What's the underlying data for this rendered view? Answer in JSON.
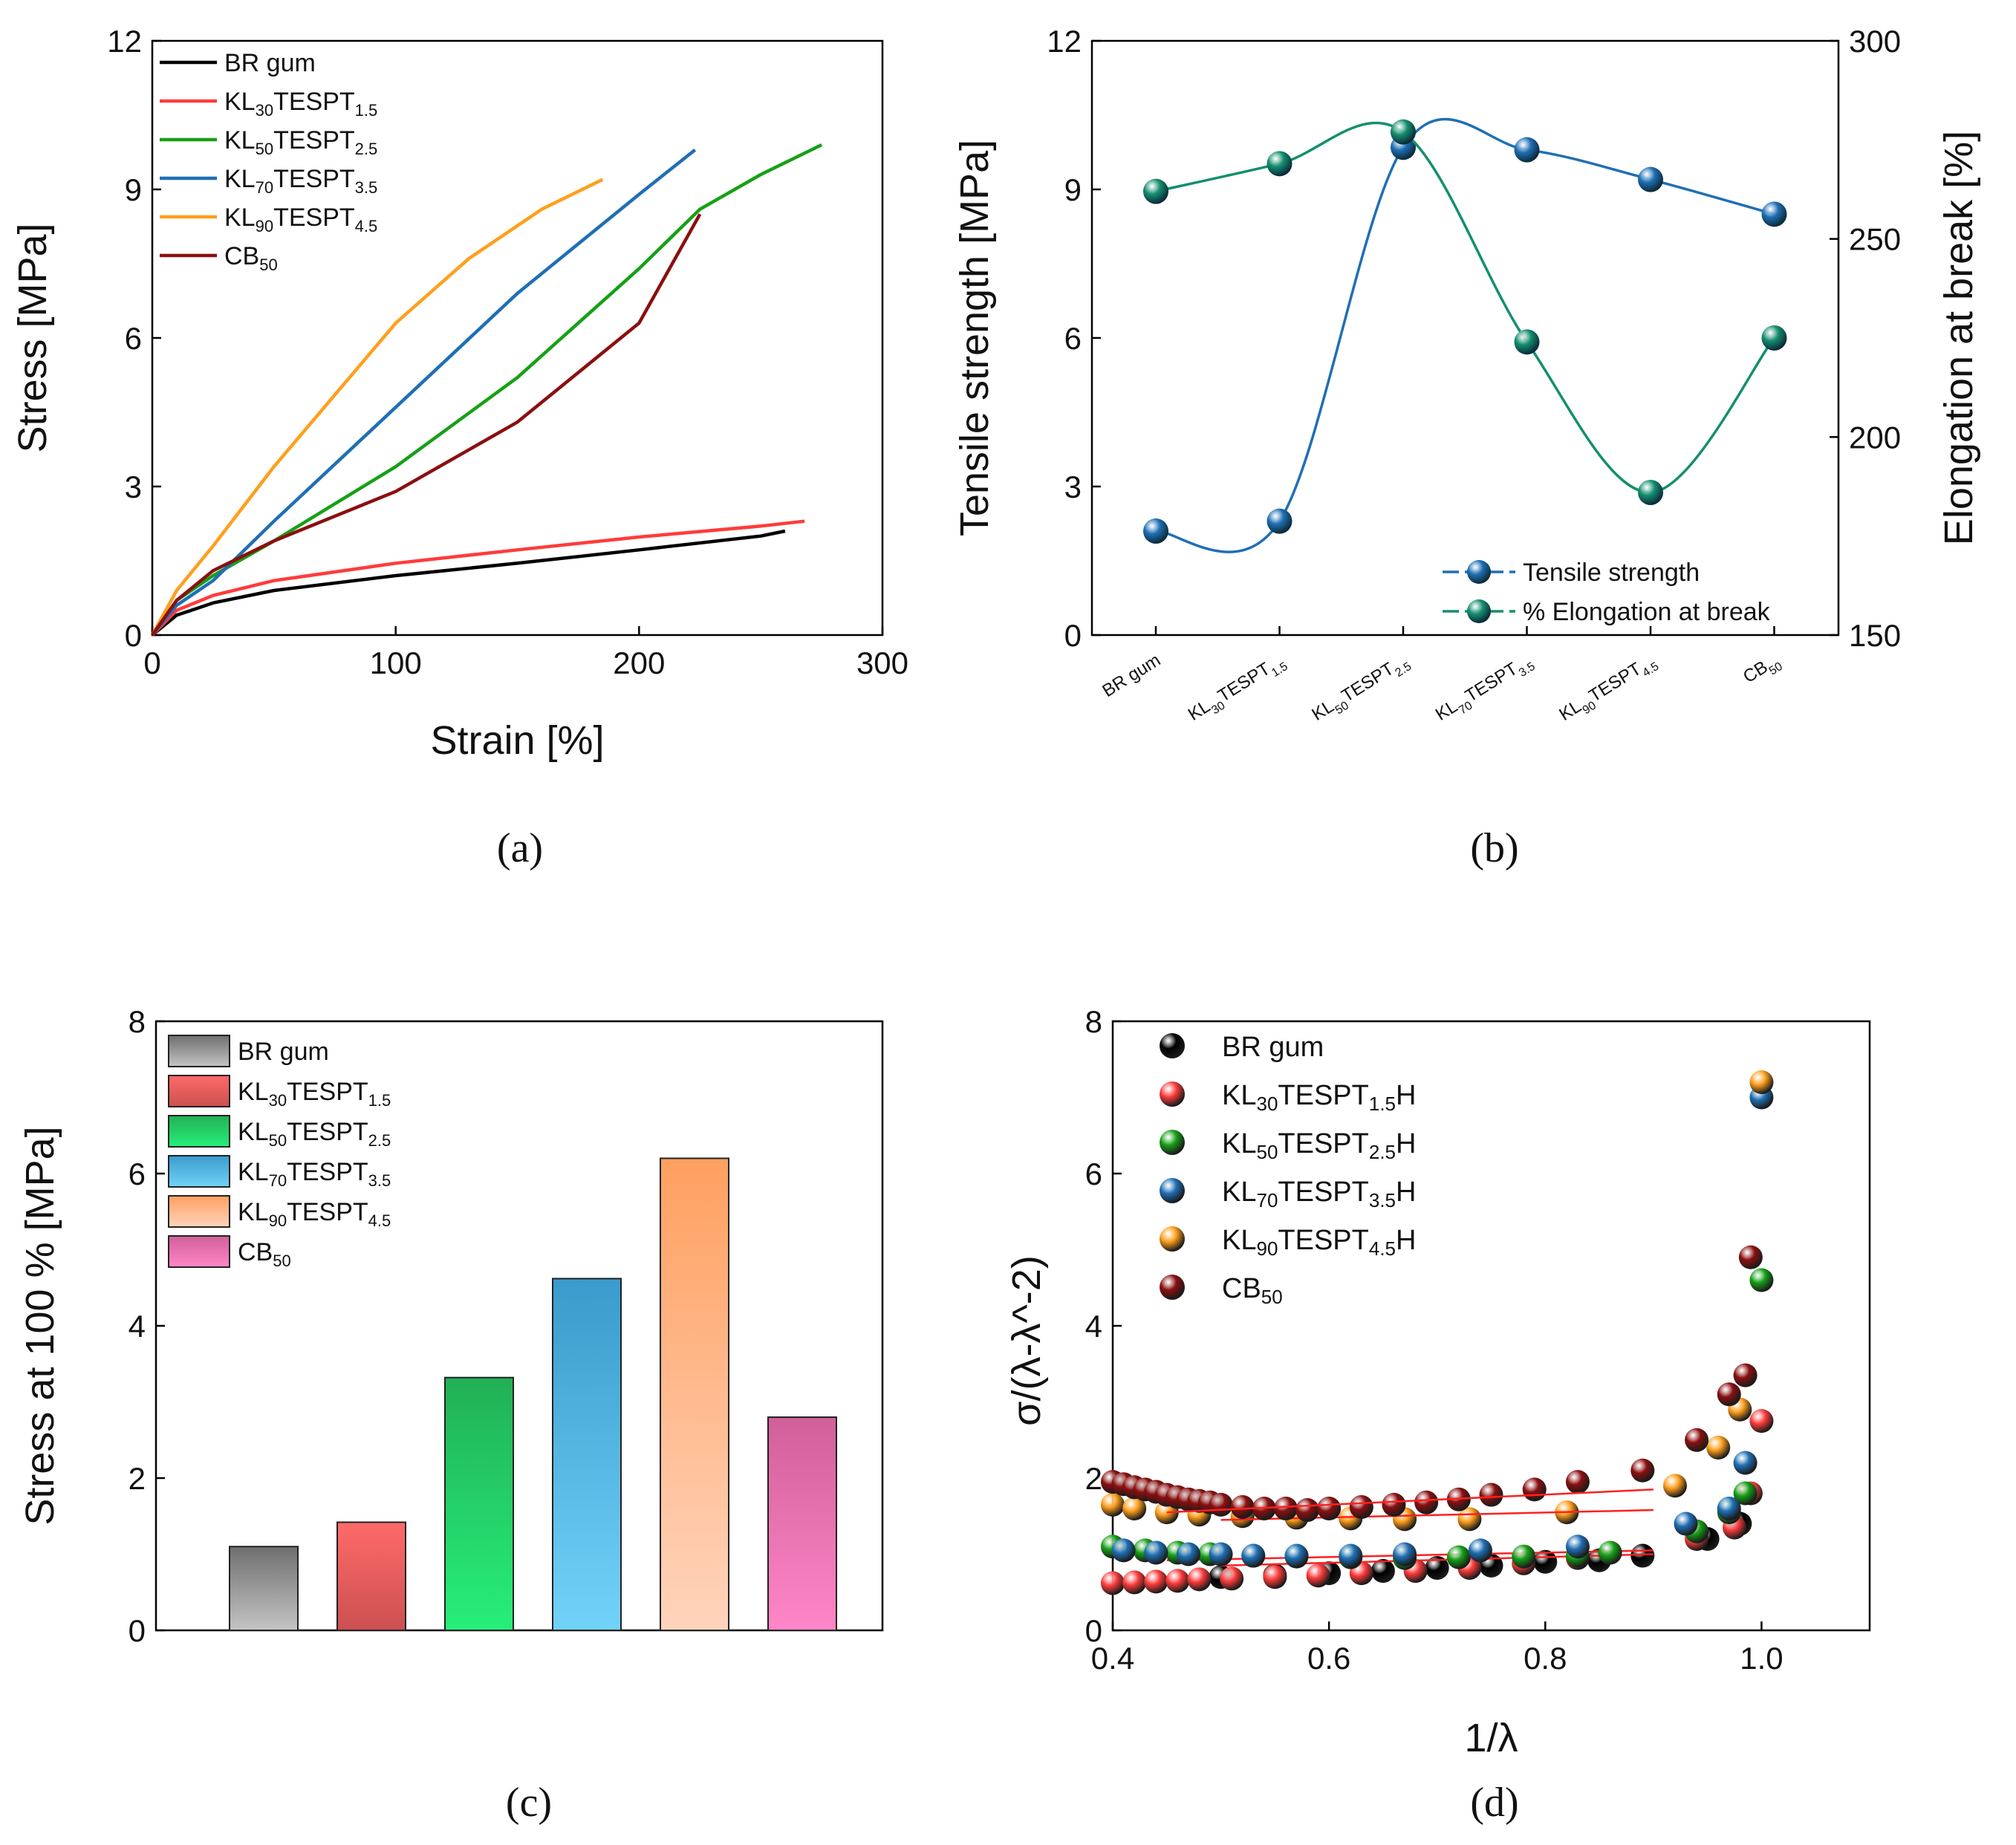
{
  "chart_data": [
    {
      "id": "a",
      "type": "line",
      "panel_label": "(a)",
      "xlabel": "Strain [%]",
      "ylabel": "Stress [MPa]",
      "xlim": [
        0,
        300
      ],
      "ylim": [
        0,
        12
      ],
      "xticks": [
        0,
        100,
        200,
        300
      ],
      "yticks": [
        0,
        3,
        6,
        9,
        12
      ],
      "legend_position": "top-left",
      "series": [
        {
          "name": "BR gum",
          "base": "BR gum",
          "sub": "",
          "suffix": "",
          "color": "#000000",
          "x": [
            0,
            10,
            25,
            50,
            100,
            150,
            200,
            250,
            260
          ],
          "y": [
            0,
            0.4,
            0.65,
            0.9,
            1.2,
            1.45,
            1.72,
            2.0,
            2.1
          ]
        },
        {
          "name": "KL30TESPT1.5",
          "base": "KL",
          "sub": "30",
          "mid": "TESPT",
          "sub2": "1.5",
          "color": "#ff3b3b",
          "x": [
            0,
            10,
            25,
            50,
            100,
            150,
            200,
            250,
            268
          ],
          "y": [
            0,
            0.5,
            0.8,
            1.1,
            1.45,
            1.72,
            1.98,
            2.2,
            2.3
          ]
        },
        {
          "name": "KL50TESPT2.5",
          "base": "KL",
          "sub": "50",
          "mid": "TESPT",
          "sub2": "2.5",
          "color": "#16a016",
          "x": [
            0,
            10,
            25,
            50,
            100,
            150,
            200,
            225,
            250,
            275
          ],
          "y": [
            0,
            0.7,
            1.2,
            1.9,
            3.4,
            5.2,
            7.4,
            8.6,
            9.3,
            9.9
          ]
        },
        {
          "name": "KL70TESPT3.5",
          "base": "KL",
          "sub": "70",
          "mid": "TESPT",
          "sub2": "3.5",
          "color": "#1f6fb5",
          "x": [
            0,
            10,
            25,
            50,
            100,
            150,
            200,
            223
          ],
          "y": [
            0,
            0.6,
            1.1,
            2.3,
            4.6,
            6.9,
            8.9,
            9.8
          ]
        },
        {
          "name": "KL90TESPT4.5",
          "base": "KL",
          "sub": "90",
          "mid": "TESPT",
          "sub2": "4.5",
          "color": "#ff9f1c",
          "x": [
            0,
            10,
            25,
            50,
            100,
            130,
            160,
            185
          ],
          "y": [
            0,
            0.9,
            1.8,
            3.4,
            6.3,
            7.6,
            8.6,
            9.2
          ]
        },
        {
          "name": "CB50",
          "base": "CB",
          "sub": "50",
          "mid": "",
          "sub2": "",
          "color": "#8b0f0f",
          "x": [
            0,
            10,
            25,
            50,
            100,
            150,
            200,
            225
          ],
          "y": [
            0,
            0.7,
            1.3,
            1.9,
            2.9,
            4.3,
            6.3,
            8.5
          ]
        }
      ]
    },
    {
      "id": "b",
      "type": "scatter",
      "panel_label": "(b)",
      "ylabel": "Tensile strength [MPa]",
      "y2label": "Elongation at break [%]",
      "ylim": [
        0,
        12
      ],
      "y2lim": [
        150,
        300
      ],
      "yticks": [
        0,
        3,
        6,
        9,
        12
      ],
      "y2ticks": [
        150,
        200,
        250,
        300
      ],
      "legend_position": "bottom-right",
      "categories": [
        {
          "base": "BR gum",
          "sub": "",
          "mid": "",
          "sub2": ""
        },
        {
          "base": "KL",
          "sub": "30",
          "mid": "TESPT",
          "sub2": "1.5"
        },
        {
          "base": "KL",
          "sub": "50",
          "mid": "TESPT",
          "sub2": "2.5"
        },
        {
          "base": "KL",
          "sub": "70",
          "mid": "TESPT",
          "sub2": "3.5"
        },
        {
          "base": "KL",
          "sub": "90",
          "mid": "TESPT",
          "sub2": "4.5"
        },
        {
          "base": "CB",
          "sub": "50",
          "mid": "",
          "sub2": ""
        }
      ],
      "series": [
        {
          "name": "Tensile strength",
          "axis": "left",
          "color": "#1f6fb5",
          "values": [
            2.1,
            2.3,
            9.85,
            9.8,
            9.2,
            8.5
          ]
        },
        {
          "name": "% Elongation at break",
          "axis": "right",
          "color": "#148f6e",
          "values": [
            262,
            269,
            277,
            224,
            186,
            225
          ]
        }
      ]
    },
    {
      "id": "c",
      "type": "bar",
      "panel_label": "(c)",
      "ylabel": "Stress at 100 % [MPa]",
      "ylim": [
        0,
        8
      ],
      "yticks": [
        0,
        2,
        4,
        6,
        8
      ],
      "legend_position": "top-left",
      "series": [
        {
          "name": "BR gum",
          "base": "BR gum",
          "sub": "",
          "mid": "",
          "sub2": "",
          "value": 1.1,
          "c1": "#6f6f6f",
          "c2": "#c4c4c4"
        },
        {
          "name": "KL30TESPT1.5",
          "base": " KL",
          "sub": "30",
          "mid": "TESPT",
          "sub2": "1.5",
          "value": 1.42,
          "c1": "#ff6a6a",
          "c2": "#cc5050"
        },
        {
          "name": "KL50TESPT2.5",
          "base": "KL",
          "sub": "50",
          "mid": "TESPT",
          "sub2": "2.5",
          "value": 3.32,
          "c1": "#22b055",
          "c2": "#26ef7a"
        },
        {
          "name": "KL70TESPT3.5",
          "base": "KL",
          "sub": "70",
          "mid": "TESPT",
          "sub2": "3.5",
          "value": 4.62,
          "c1": "#3a9bcc",
          "c2": "#72d2f8"
        },
        {
          "name": "KL90TESPT4.5",
          "base": "KL",
          "sub": "90",
          "mid": "TESPT",
          "sub2": "4.5",
          "value": 6.2,
          "c1": "#ffa060",
          "c2": "#ffd4bc"
        },
        {
          "name": "CB50",
          "base": "CB",
          "sub": "50",
          "mid": "",
          "sub2": "",
          "value": 2.8,
          "c1": "#d0609a",
          "c2": "#ff86c8"
        }
      ]
    },
    {
      "id": "d",
      "type": "scatter",
      "panel_label": "(d)",
      "xlabel": "1/λ",
      "ylabel": "σ/(λ-λ^-2)",
      "xlim": [
        0.4,
        1.1
      ],
      "ylim": [
        0,
        8
      ],
      "xticks": [
        "0.4",
        "0.6",
        "0.8",
        "1.0"
      ],
      "yticks": [
        0,
        2,
        4,
        6,
        8
      ],
      "legend_position": "top-left",
      "fit_line_color": "#ff2020",
      "series": [
        {
          "name": "BR gum",
          "base": "BR gum",
          "sub": "",
          "mid": "",
          "sub2": "",
          "suffix": "",
          "color": "#000000",
          "x": [
            0.5,
            0.55,
            0.6,
            0.65,
            0.7,
            0.75,
            0.8,
            0.85,
            0.89,
            0.95,
            0.98
          ],
          "y": [
            0.7,
            0.72,
            0.75,
            0.78,
            0.82,
            0.85,
            0.9,
            0.92,
            0.98,
            1.2,
            1.4
          ],
          "fit": [
            [
              0.5,
              0.85
            ],
            [
              0.9,
              1.0
            ]
          ]
        },
        {
          "name": "KL30TESPT1.5H",
          "base": "KL",
          "sub": "30",
          "mid": "TESPT",
          "sub2": "1.5",
          "suffix": "H",
          "color": "#ff3b3b",
          "x": [
            0.4,
            0.42,
            0.44,
            0.46,
            0.48,
            0.51,
            0.55,
            0.59,
            0.63,
            0.68,
            0.73,
            0.78,
            0.83,
            0.94,
            0.975,
            0.99,
            1.0
          ],
          "y": [
            0.62,
            0.63,
            0.64,
            0.65,
            0.67,
            0.68,
            0.7,
            0.72,
            0.75,
            0.78,
            0.82,
            0.88,
            0.95,
            1.2,
            1.35,
            1.8,
            2.75
          ],
          "fit": [
            [
              0.45,
              0.92
            ],
            [
              0.9,
              1.05
            ]
          ]
        },
        {
          "name": "KL50TESPT2.5H",
          "base": "KL",
          "sub": "50",
          "mid": "TESPT",
          "sub2": "2.5",
          "suffix": "H",
          "color": "#16a016",
          "x": [
            0.4,
            0.43,
            0.46,
            0.49,
            0.53,
            0.57,
            0.62,
            0.67,
            0.72,
            0.78,
            0.83,
            0.86,
            0.94,
            0.97,
            0.985,
            1.0
          ],
          "y": [
            1.1,
            1.05,
            1.02,
            1.0,
            0.98,
            0.97,
            0.96,
            0.95,
            0.96,
            0.97,
            0.98,
            1.02,
            1.3,
            1.55,
            1.8,
            4.6
          ]
        },
        {
          "name": "KL70TESPT3.5H",
          "base": "KL",
          "sub": "70",
          "mid": "TESPT",
          "sub2": "3.5",
          "suffix": "H",
          "color": "#1f6fb5",
          "x": [
            0.41,
            0.44,
            0.47,
            0.5,
            0.53,
            0.57,
            0.62,
            0.67,
            0.74,
            0.83,
            0.93,
            0.97,
            0.985,
            1.0
          ],
          "y": [
            1.05,
            1.02,
            1.0,
            1.0,
            0.98,
            0.98,
            0.98,
            1.0,
            1.05,
            1.1,
            1.4,
            1.6,
            2.2,
            7.0
          ]
        },
        {
          "name": "KL90TESPT4.5H",
          "base": "KL",
          "sub": "90",
          "mid": "TESPT",
          "sub2": "4.5",
          "suffix": "H",
          "color": "#ff9f1c",
          "x": [
            0.4,
            0.42,
            0.45,
            0.48,
            0.52,
            0.57,
            0.62,
            0.67,
            0.73,
            0.82,
            0.92,
            0.96,
            0.98,
            1.0
          ],
          "y": [
            1.65,
            1.6,
            1.55,
            1.52,
            1.5,
            1.48,
            1.47,
            1.46,
            1.46,
            1.55,
            1.9,
            2.4,
            2.9,
            7.2
          ],
          "fit": [
            [
              0.5,
              1.45
            ],
            [
              0.9,
              1.58
            ]
          ]
        },
        {
          "name": "CB50",
          "base": "CB",
          "sub": "50",
          "mid": "",
          "sub2": "",
          "suffix": "",
          "color": "#8b0f0f",
          "x": [
            0.4,
            0.41,
            0.42,
            0.43,
            0.44,
            0.45,
            0.46,
            0.47,
            0.48,
            0.49,
            0.5,
            0.52,
            0.54,
            0.56,
            0.58,
            0.6,
            0.63,
            0.66,
            0.69,
            0.72,
            0.75,
            0.79,
            0.83,
            0.89,
            0.94,
            0.97,
            0.985,
            0.99
          ],
          "y": [
            1.95,
            1.92,
            1.88,
            1.85,
            1.82,
            1.78,
            1.75,
            1.72,
            1.7,
            1.68,
            1.65,
            1.62,
            1.6,
            1.6,
            1.58,
            1.6,
            1.62,
            1.65,
            1.68,
            1.72,
            1.78,
            1.85,
            1.95,
            2.1,
            2.5,
            3.1,
            3.35,
            4.9
          ],
          "fit": [
            [
              0.45,
              1.55
            ],
            [
              0.9,
              1.85
            ]
          ]
        }
      ]
    }
  ]
}
